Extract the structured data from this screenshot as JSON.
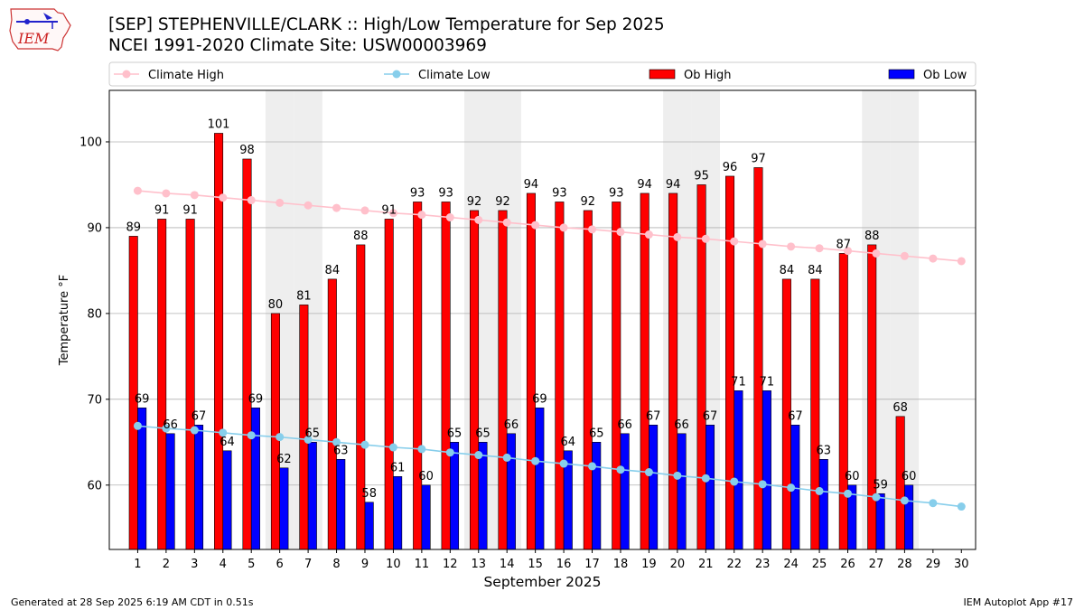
{
  "header": {
    "logo_text": "IEM",
    "title_line1": "[SEP] STEPHENVILLE/CLARK :: High/Low Temperature for Sep 2025",
    "title_line2": "NCEI 1991-2020 Climate Site: USW00003969"
  },
  "footer": {
    "generated": "Generated at 28 Sep 2025 6:19 AM CDT in 0.51s",
    "app": "IEM Autoplot App #17"
  },
  "colors": {
    "climate_high": "#ffc0cb",
    "climate_low": "#87ceeb",
    "ob_high": "#ff0000",
    "ob_low": "#0000ff",
    "weekend_shade": "#eeeeee",
    "grid": "#b0b0b0"
  },
  "chart_data": {
    "type": "bar",
    "xlabel": "September 2025",
    "ylabel": "Temperature °F",
    "ylim": [
      52.5,
      106
    ],
    "yticks": [
      60,
      70,
      80,
      90,
      100
    ],
    "grid": "horizontal",
    "legend_position": "top",
    "categories": [
      "1",
      "2",
      "3",
      "4",
      "5",
      "6",
      "7",
      "8",
      "9",
      "10",
      "11",
      "12",
      "13",
      "14",
      "15",
      "16",
      "17",
      "18",
      "19",
      "20",
      "21",
      "22",
      "23",
      "24",
      "25",
      "26",
      "27",
      "28",
      "29",
      "30"
    ],
    "shaded_days": [
      6,
      7,
      13,
      14,
      20,
      21,
      27,
      28
    ],
    "series": [
      {
        "name": "Ob High",
        "kind": "bar",
        "values": [
          89,
          91,
          91,
          101,
          98,
          80,
          81,
          84,
          88,
          91,
          93,
          93,
          92,
          92,
          94,
          93,
          92,
          93,
          94,
          94,
          95,
          96,
          97,
          84,
          84,
          87,
          88,
          68,
          null,
          null
        ]
      },
      {
        "name": "Ob Low",
        "kind": "bar",
        "values": [
          69,
          66,
          67,
          64,
          69,
          62,
          65,
          63,
          58,
          61,
          60,
          65,
          65,
          66,
          69,
          64,
          65,
          66,
          67,
          66,
          67,
          71,
          71,
          67,
          63,
          60,
          59,
          60,
          null,
          null
        ]
      },
      {
        "name": "Climate High",
        "kind": "line",
        "values": [
          94.3,
          94.0,
          93.8,
          93.5,
          93.2,
          92.9,
          92.6,
          92.3,
          92.0,
          91.7,
          91.5,
          91.2,
          90.9,
          90.6,
          90.3,
          90.0,
          89.8,
          89.5,
          89.2,
          88.9,
          88.7,
          88.4,
          88.1,
          87.8,
          87.6,
          87.3,
          87.0,
          86.7,
          86.4,
          86.1
        ]
      },
      {
        "name": "Climate Low",
        "kind": "line",
        "values": [
          66.9,
          66.6,
          66.4,
          66.1,
          65.8,
          65.6,
          65.3,
          65.0,
          64.7,
          64.4,
          64.2,
          63.8,
          63.5,
          63.2,
          62.8,
          62.5,
          62.2,
          61.8,
          61.5,
          61.1,
          60.8,
          60.4,
          60.1,
          59.7,
          59.3,
          59.0,
          58.6,
          58.2,
          57.9,
          57.5
        ]
      }
    ]
  }
}
